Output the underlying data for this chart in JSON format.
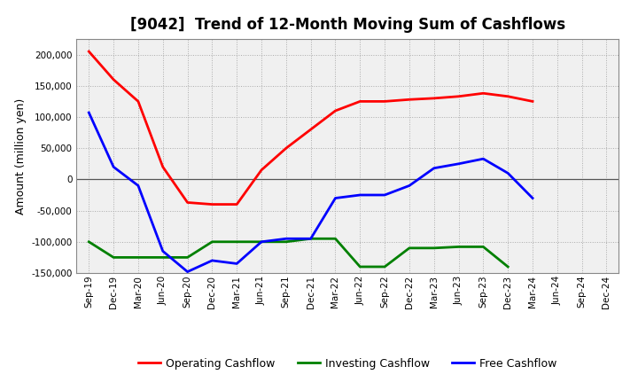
{
  "title": "[9042]  Trend of 12-Month Moving Sum of Cashflows",
  "ylabel": "Amount (million yen)",
  "x_labels": [
    "Sep-19",
    "Dec-19",
    "Mar-20",
    "Jun-20",
    "Sep-20",
    "Dec-20",
    "Mar-21",
    "Jun-21",
    "Sep-21",
    "Dec-21",
    "Mar-22",
    "Jun-22",
    "Sep-22",
    "Dec-22",
    "Mar-23",
    "Jun-23",
    "Sep-23",
    "Dec-23",
    "Mar-24",
    "Jun-24",
    "Sep-24",
    "Dec-24"
  ],
  "operating": [
    205000,
    160000,
    125000,
    20000,
    -37000,
    -40000,
    -40000,
    15000,
    50000,
    80000,
    110000,
    125000,
    125000,
    128000,
    130000,
    133000,
    138000,
    133000,
    125000,
    null,
    null,
    null
  ],
  "investing": [
    -100000,
    -125000,
    -125000,
    -125000,
    -125000,
    -100000,
    -100000,
    -100000,
    -100000,
    -95000,
    -95000,
    -140000,
    -140000,
    -110000,
    -110000,
    -108000,
    -108000,
    -140000,
    null,
    null,
    null,
    null
  ],
  "free": [
    107000,
    20000,
    -10000,
    -115000,
    -148000,
    -130000,
    -135000,
    -100000,
    -95000,
    -95000,
    -30000,
    -25000,
    -25000,
    -10000,
    18000,
    25000,
    33000,
    10000,
    -30000,
    null,
    null,
    null
  ],
  "operating_color": "#FF0000",
  "investing_color": "#008000",
  "free_color": "#0000FF",
  "ylim": [
    -150000,
    225000
  ],
  "yticks": [
    -150000,
    -100000,
    -50000,
    0,
    50000,
    100000,
    150000,
    200000
  ],
  "grid_color": "#aaaaaa",
  "bg_color": "#ffffff",
  "plot_bg_color": "#f0f0f0",
  "title_fontsize": 12,
  "axis_fontsize": 9,
  "tick_fontsize": 7.5,
  "legend_fontsize": 9
}
